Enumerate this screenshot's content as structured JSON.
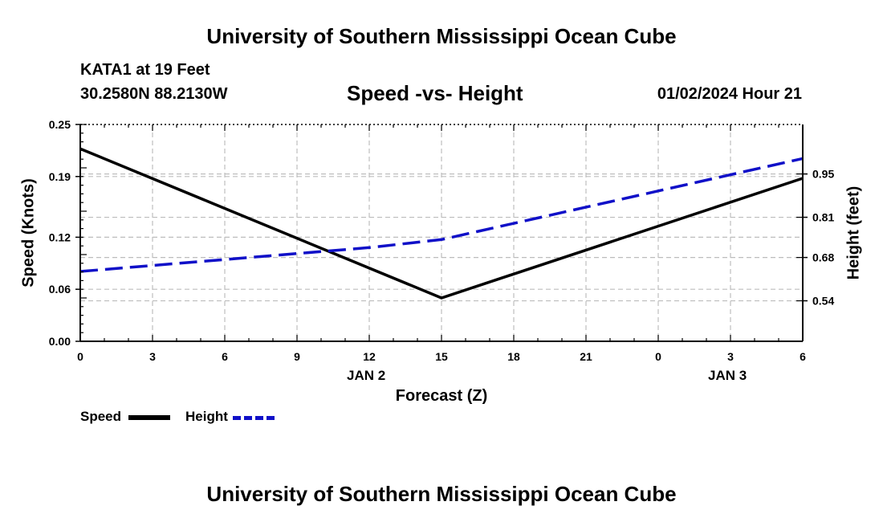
{
  "header": {
    "title": "University of Southern Mississippi Ocean Cube",
    "station": "KATA1 at 19 Feet",
    "coords": "30.2580N  88.2130W",
    "date": "01/02/2024 Hour 21"
  },
  "footer": {
    "title": "University of Southern Mississippi Ocean Cube"
  },
  "chart_data": {
    "type": "line",
    "title": "Speed -vs- Height",
    "xlabel": "Forecast (Z)",
    "ylabel_left": "Speed (Knots)",
    "ylabel_right": "Height (feet)",
    "x": [
      0,
      3,
      6,
      9,
      12,
      15,
      18,
      21,
      24,
      27,
      30
    ],
    "x_tick_labels": [
      "0",
      "3",
      "6",
      "9",
      "12",
      "15",
      "18",
      "21",
      "0",
      "3",
      "6"
    ],
    "day_labels": [
      {
        "x": 12,
        "label": "JAN 2"
      },
      {
        "x": 27,
        "label": "JAN 3"
      }
    ],
    "xlim": [
      0,
      30
    ],
    "left_axis": {
      "ylim": [
        0,
        0.25
      ],
      "ticks": [
        0,
        0.06,
        0.12,
        0.19,
        0.25
      ],
      "tick_labels": [
        "0.00",
        "0.06",
        "0.12",
        "0.19",
        "0.25"
      ]
    },
    "right_axis": {
      "ylim": [
        0.409,
        1.11
      ],
      "ticks": [
        0.54,
        0.68,
        0.81,
        0.95
      ],
      "tick_labels": [
        "0.54",
        "0.68",
        "0.81",
        "0.95"
      ]
    },
    "series": [
      {
        "name": "Speed",
        "axis": "left",
        "color": "#000000",
        "dashed": false,
        "points": [
          [
            0,
            0.222
          ],
          [
            15,
            0.05
          ],
          [
            30,
            0.188
          ]
        ]
      },
      {
        "name": "Height",
        "axis": "right",
        "color": "#1010c8",
        "dashed": true,
        "points": [
          [
            0,
            0.635
          ],
          [
            12,
            0.712
          ],
          [
            15,
            0.738
          ],
          [
            30,
            1.0
          ]
        ]
      }
    ],
    "grid": true
  }
}
